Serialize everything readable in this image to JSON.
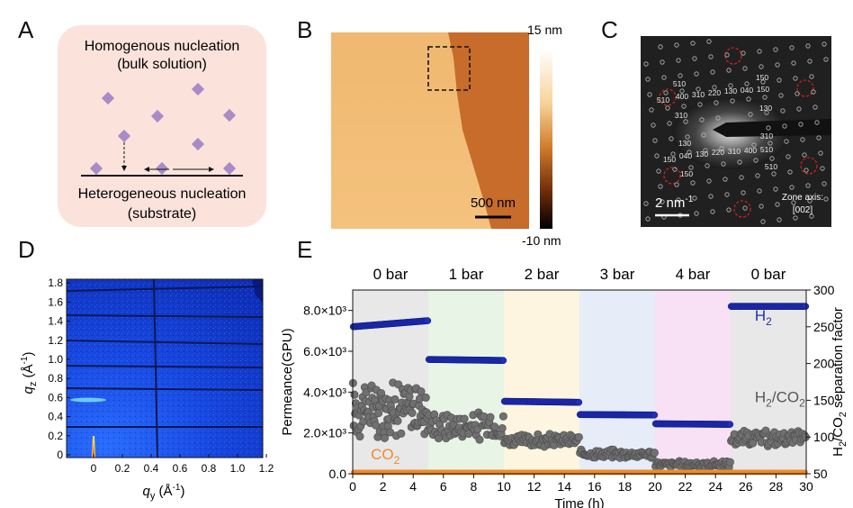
{
  "panels": {
    "A": {
      "letter": "A",
      "top_line1": "Homogenous nucleation",
      "top_line2": "(bulk solution)",
      "bottom_line1": "Heterogeneous nucleation",
      "bottom_line2": "(substrate)",
      "box_color": "#fbe3dc",
      "crystal_color": "#a98bc6"
    },
    "B": {
      "letter": "B",
      "colorbar_max": "15 nm",
      "colorbar_min": "-10 nm",
      "scalebar": "500 nm"
    },
    "C": {
      "letter": "C",
      "scalebar_main": "2 nm",
      "scalebar_exp": "-1",
      "zone_axis_line1": "Zone axis:",
      "zone_axis_line2": "[002]",
      "indices_upper": [
        "510",
        "150",
        "510",
        "400",
        "310",
        "220",
        "130",
        "040",
        "150",
        "310",
        "130"
      ],
      "indices_lower": [
        "310",
        "130",
        "150",
        "040",
        "130",
        "220",
        "310",
        "400",
        "510",
        "150",
        "510"
      ]
    },
    "D": {
      "letter": "D",
      "ylabel_q": "q",
      "ylabel_sub": "z",
      "ylabel_unit": " (Å",
      "ylabel_exp": "-1",
      "ylabel_close": ")",
      "xlabel_q": "q",
      "xlabel_sub": "y",
      "xlabel_unit": " (Å",
      "xlabel_exp": "-1",
      "xlabel_close": ")",
      "yticks": [
        "0",
        "0.2",
        "0.4",
        "0.6",
        "0.8",
        "1.0",
        "1.2",
        "1.4",
        "1.6",
        "1.8"
      ],
      "xticks": [
        "0",
        "0.2",
        "0.4",
        "0.6",
        "0.8",
        "1.0",
        "1.2"
      ]
    },
    "E": {
      "letter": "E"
    }
  },
  "chart_data": {
    "type": "scatter",
    "xlabel": "Time (h)",
    "ylabel_left": "Permeance(GPU)",
    "ylabel_right_pre": "H",
    "ylabel_right_sub1": "2",
    "ylabel_right_mid": "/CO",
    "ylabel_right_sub2": "2",
    "ylabel_right_post": " separation factor",
    "xlim": [
      0,
      30
    ],
    "ylim_left": [
      0,
      9000
    ],
    "ylim_right": [
      50,
      300
    ],
    "xticks": [
      0,
      2,
      4,
      6,
      8,
      10,
      12,
      14,
      16,
      18,
      20,
      22,
      24,
      26,
      28,
      30
    ],
    "yticks_left": [
      "0.0",
      "2.0×10³",
      "4.0×10³",
      "6.0×10³",
      "8.0×10³"
    ],
    "yticks_left_values": [
      0,
      2000,
      4000,
      6000,
      8000
    ],
    "yticks_right": [
      50,
      100,
      150,
      200,
      250,
      300
    ],
    "pressure_segments": [
      {
        "label": "0 bar",
        "start": 0,
        "end": 5,
        "color": "#e8e8e8"
      },
      {
        "label": "1 bar",
        "start": 5,
        "end": 10,
        "color": "#e8f5e6"
      },
      {
        "label": "2 bar",
        "start": 10,
        "end": 15,
        "color": "#fdf5e0"
      },
      {
        "label": "3 bar",
        "start": 15,
        "end": 20,
        "color": "#e6ecf8"
      },
      {
        "label": "4 bar",
        "start": 20,
        "end": 25,
        "color": "#f8e0f5"
      },
      {
        "label": "0 bar",
        "start": 25,
        "end": 30,
        "color": "#e8e8e8"
      }
    ],
    "series": [
      {
        "name": "H2",
        "axis": "left",
        "color": "#1f2fb8",
        "segments": [
          {
            "start": 0,
            "end": 5,
            "y0": 7200,
            "y1": 7500
          },
          {
            "start": 5,
            "end": 10,
            "y0": 5600,
            "y1": 5550
          },
          {
            "start": 10,
            "end": 15,
            "y0": 3550,
            "y1": 3500
          },
          {
            "start": 15,
            "end": 20,
            "y0": 2900,
            "y1": 2880
          },
          {
            "start": 20,
            "end": 25,
            "y0": 2450,
            "y1": 2420
          },
          {
            "start": 25,
            "end": 30,
            "y0": 8200,
            "y1": 8200
          }
        ]
      },
      {
        "name": "CO2",
        "axis": "left",
        "color": "#f08a2a",
        "segments": [
          {
            "start": 0,
            "end": 30,
            "y0": 70,
            "y1": 70
          }
        ]
      },
      {
        "name": "H2/CO2",
        "axis": "right",
        "color": "#6b6b6b",
        "segments": [
          {
            "start": 0,
            "end": 5,
            "center": 140,
            "spread": 45
          },
          {
            "start": 5,
            "end": 10,
            "center": 115,
            "spread": 25
          },
          {
            "start": 10,
            "end": 15,
            "center": 95,
            "spread": 10
          },
          {
            "start": 15,
            "end": 20,
            "center": 77,
            "spread": 7
          },
          {
            "start": 20,
            "end": 25,
            "center": 63,
            "spread": 5
          },
          {
            "start": 25,
            "end": 30,
            "center": 98,
            "spread": 12
          }
        ]
      }
    ],
    "labels": {
      "h2": "H",
      "h2_sub": "2",
      "co2": "CO",
      "co2_sub": "2",
      "ratio_pre": "H",
      "ratio_sub1": "2",
      "ratio_mid": "/CO",
      "ratio_sub2": "2"
    }
  }
}
